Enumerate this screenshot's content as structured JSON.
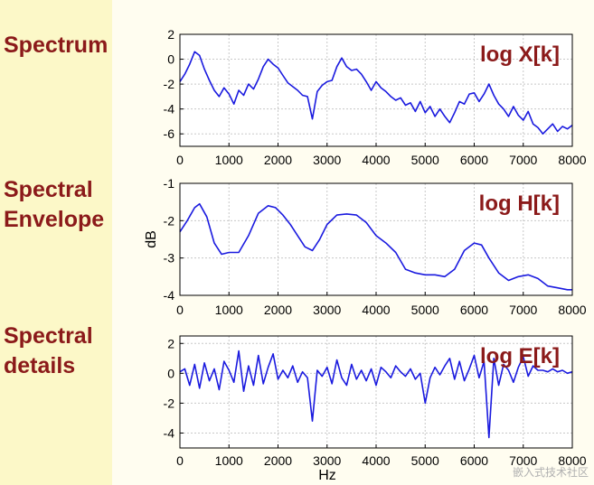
{
  "row_labels": {
    "spectrum": "Spectrum",
    "envelope": "Spectral\nEnvelope",
    "details": "Spectral\ndetails"
  },
  "watermark": "嵌入式技术社区",
  "colors": {
    "line": "#1a1adf",
    "label": "#8b1a1a",
    "grid": "#c8c8c8",
    "sidebar": "#fcf8c8"
  },
  "chart_data": [
    {
      "type": "line",
      "annotation": "log X[k]",
      "xlabel": "",
      "ylabel": "",
      "xlim": [
        0,
        8000
      ],
      "ylim": [
        -7,
        2
      ],
      "xticks": [
        0,
        1000,
        2000,
        3000,
        4000,
        5000,
        6000,
        7000,
        8000
      ],
      "yticks": [
        2,
        0,
        -2,
        -4,
        -6
      ],
      "grid": true,
      "series": [
        {
          "x": [
            0,
            100,
            200,
            300,
            400,
            500,
            600,
            700,
            800,
            900,
            1000,
            1100,
            1200,
            1300,
            1400,
            1500,
            1600,
            1700,
            1800,
            1900,
            2000,
            2100,
            2200,
            2300,
            2400,
            2500,
            2600,
            2700,
            2800,
            2900,
            3000,
            3100,
            3200,
            3300,
            3400,
            3500,
            3600,
            3700,
            3800,
            3900,
            4000,
            4100,
            4200,
            4300,
            4400,
            4500,
            4600,
            4700,
            4800,
            4900,
            5000,
            5100,
            5200,
            5300,
            5400,
            5500,
            5600,
            5700,
            5800,
            5900,
            6000,
            6100,
            6200,
            6300,
            6400,
            6500,
            6600,
            6700,
            6800,
            6900,
            7000,
            7100,
            7200,
            7300,
            7400,
            7500,
            7600,
            7700,
            7800,
            7900,
            8000
          ],
          "y": [
            -1.8,
            -1.2,
            -0.4,
            0.6,
            0.3,
            -0.8,
            -1.7,
            -2.5,
            -3.0,
            -2.3,
            -2.8,
            -3.6,
            -2.5,
            -2.9,
            -2.0,
            -2.4,
            -1.6,
            -0.6,
            0.0,
            -0.4,
            -0.7,
            -1.3,
            -1.9,
            -2.2,
            -2.5,
            -2.9,
            -3.0,
            -4.8,
            -2.6,
            -2.1,
            -1.8,
            -1.7,
            -0.6,
            0.1,
            -0.6,
            -0.9,
            -0.8,
            -1.2,
            -1.8,
            -2.5,
            -1.8,
            -2.3,
            -2.6,
            -3.0,
            -3.3,
            -3.1,
            -3.7,
            -3.5,
            -4.2,
            -3.4,
            -4.3,
            -3.8,
            -4.6,
            -4.0,
            -4.6,
            -5.1,
            -4.3,
            -3.4,
            -3.6,
            -2.8,
            -2.7,
            -3.4,
            -2.8,
            -2.0,
            -2.9,
            -3.6,
            -4.0,
            -4.6,
            -3.8,
            -4.5,
            -4.9,
            -4.2,
            -5.2,
            -5.5,
            -6.0,
            -5.6,
            -5.2,
            -5.8,
            -5.4,
            -5.6,
            -5.3
          ]
        }
      ]
    },
    {
      "type": "line",
      "annotation": "log H[k]",
      "xlabel": "",
      "ylabel": "dB",
      "xlim": [
        0,
        8000
      ],
      "ylim": [
        -4,
        -1
      ],
      "xticks": [
        0,
        1000,
        2000,
        3000,
        4000,
        5000,
        6000,
        7000,
        8000
      ],
      "yticks": [
        -1,
        -2,
        -3,
        -4
      ],
      "grid": true,
      "series": [
        {
          "x": [
            0,
            150,
            300,
            400,
            550,
            700,
            850,
            1000,
            1200,
            1400,
            1600,
            1800,
            1950,
            2100,
            2250,
            2400,
            2550,
            2700,
            2850,
            3000,
            3200,
            3400,
            3600,
            3800,
            4000,
            4200,
            4400,
            4600,
            4800,
            5000,
            5200,
            5400,
            5600,
            5800,
            6000,
            6150,
            6300,
            6500,
            6700,
            6900,
            7100,
            7300,
            7500,
            7700,
            7900,
            8000
          ],
          "y": [
            -2.3,
            -2.0,
            -1.65,
            -1.55,
            -1.9,
            -2.6,
            -2.9,
            -2.85,
            -2.85,
            -2.4,
            -1.8,
            -1.6,
            -1.65,
            -1.85,
            -2.1,
            -2.4,
            -2.7,
            -2.8,
            -2.5,
            -2.1,
            -1.85,
            -1.82,
            -1.85,
            -2.05,
            -2.4,
            -2.6,
            -2.85,
            -3.3,
            -3.4,
            -3.45,
            -3.45,
            -3.5,
            -3.3,
            -2.8,
            -2.6,
            -2.65,
            -3.0,
            -3.4,
            -3.6,
            -3.5,
            -3.45,
            -3.55,
            -3.75,
            -3.8,
            -3.85,
            -3.85
          ]
        }
      ]
    },
    {
      "type": "line",
      "annotation": "log E[k]",
      "xlabel": "Hz",
      "ylabel": "",
      "xlim": [
        0,
        8000
      ],
      "ylim": [
        -5,
        2.5
      ],
      "xticks": [
        0,
        1000,
        2000,
        3000,
        4000,
        5000,
        6000,
        7000,
        8000
      ],
      "yticks": [
        2,
        0,
        -2,
        -4
      ],
      "grid": true,
      "series": [
        {
          "x": [
            0,
            100,
            200,
            300,
            400,
            500,
            600,
            700,
            800,
            900,
            1000,
            1100,
            1200,
            1300,
            1400,
            1500,
            1600,
            1700,
            1800,
            1900,
            2000,
            2100,
            2200,
            2300,
            2400,
            2500,
            2600,
            2700,
            2800,
            2900,
            3000,
            3100,
            3200,
            3300,
            3400,
            3500,
            3600,
            3700,
            3800,
            3900,
            4000,
            4100,
            4200,
            4300,
            4400,
            4500,
            4600,
            4700,
            4800,
            4900,
            5000,
            5100,
            5200,
            5300,
            5400,
            5500,
            5600,
            5700,
            5800,
            5900,
            6000,
            6100,
            6200,
            6300,
            6400,
            6500,
            6600,
            6700,
            6800,
            6900,
            7000,
            7100,
            7200,
            7300,
            7400,
            7500,
            7600,
            7700,
            7800,
            7900,
            8000
          ],
          "y": [
            0.1,
            0.3,
            -0.8,
            0.6,
            -1.0,
            0.7,
            -0.5,
            0.3,
            -1.1,
            0.8,
            0.2,
            -0.6,
            1.5,
            -1.2,
            0.5,
            -0.8,
            1.2,
            -0.7,
            0.4,
            1.3,
            -0.4,
            0.2,
            -0.3,
            0.5,
            -0.6,
            0.1,
            -0.3,
            -3.2,
            0.2,
            -0.2,
            0.4,
            -0.7,
            0.9,
            -0.3,
            -0.8,
            0.6,
            -0.4,
            0.2,
            -0.5,
            0.3,
            -0.8,
            0.4,
            0.1,
            -0.3,
            0.5,
            0.1,
            -0.2,
            0.3,
            -0.4,
            0.0,
            -2.0,
            -0.3,
            0.4,
            -0.1,
            0.5,
            1.0,
            -0.4,
            0.8,
            -0.5,
            0.3,
            1.2,
            -0.3,
            0.8,
            -4.3,
            1.0,
            -0.8,
            0.6,
            0.2,
            -0.6,
            0.4,
            1.1,
            -0.2,
            0.5,
            0.2,
            0.2,
            0.1,
            0.3,
            0.1,
            0.2,
            0.0,
            0.1
          ]
        }
      ]
    }
  ]
}
